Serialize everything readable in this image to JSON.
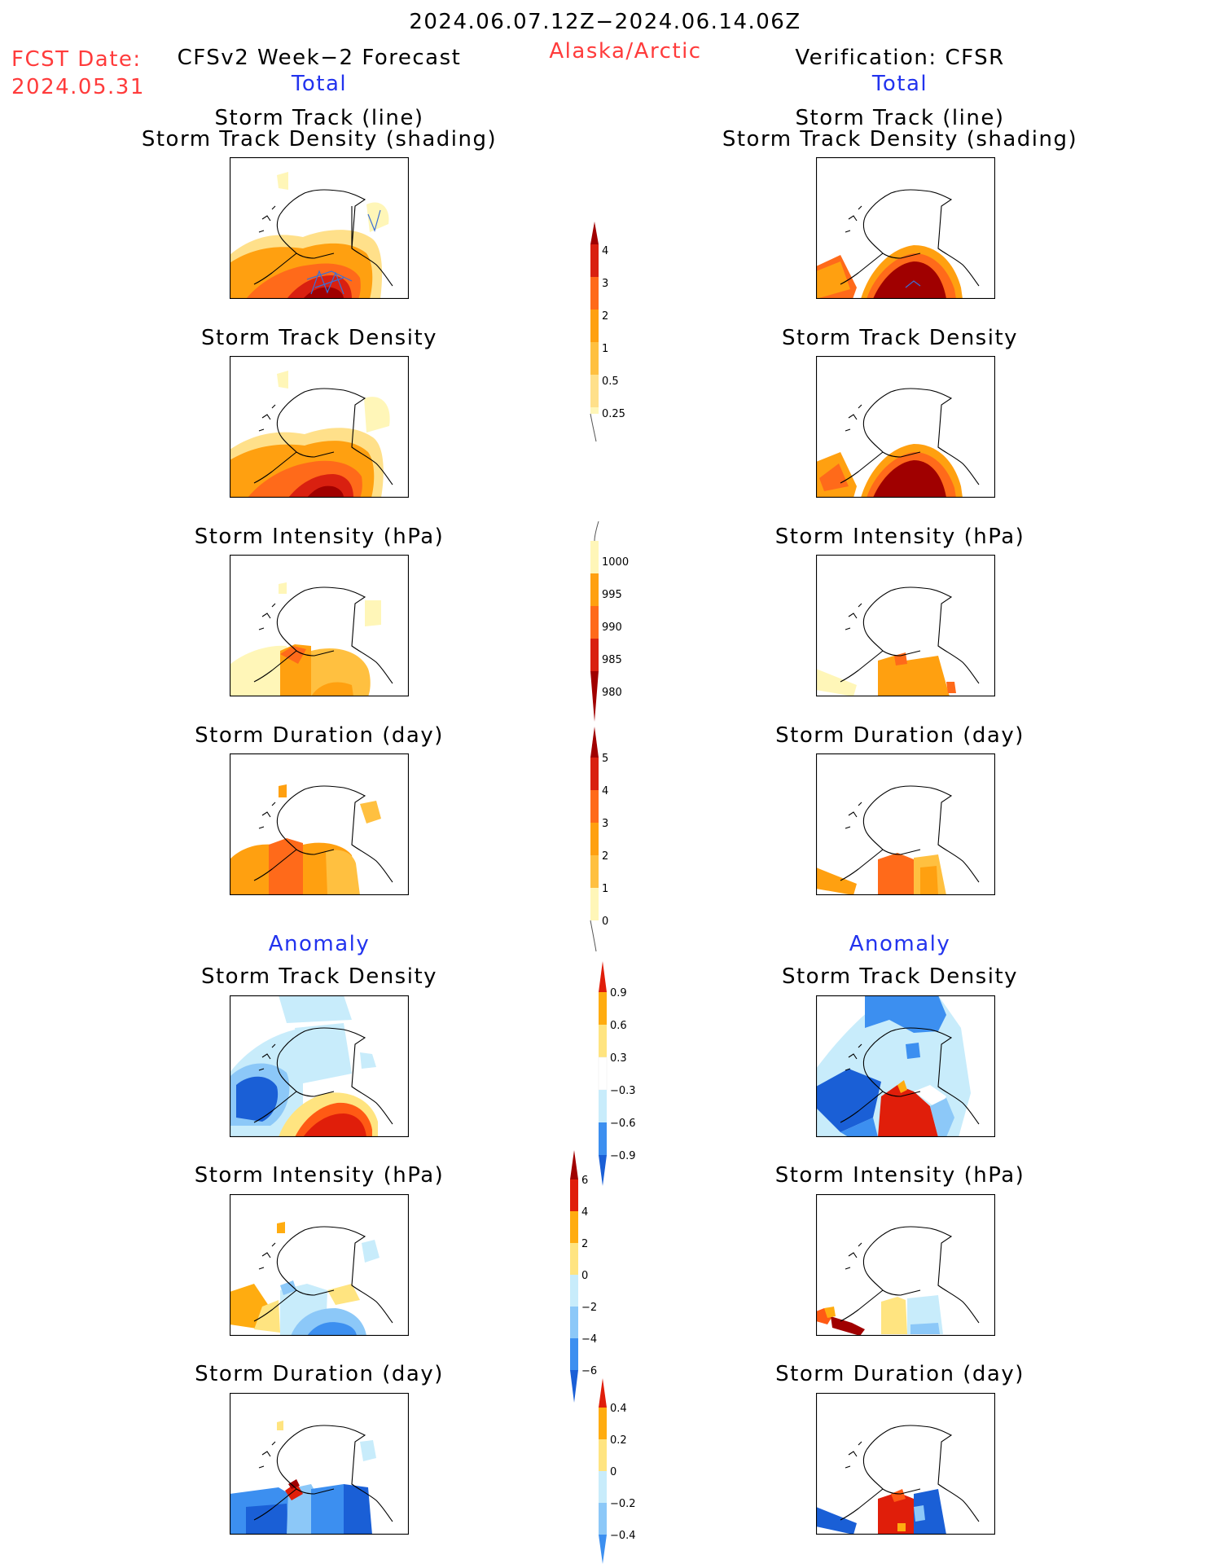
{
  "header": {
    "period": "2024.06.07.12Z−2024.06.14.06Z",
    "fcst_label": "FCST Date:",
    "fcst_date": "2024.05.31",
    "left_title": "CFSv2 Week−2 Forecast",
    "region": "Alaska/Arctic",
    "right_title": "Verification: CFSR",
    "total_label": "Total",
    "anomaly_label": "Anomaly"
  },
  "panel_titles": {
    "track_line": "Storm Track (line)",
    "track_shading": "Storm Track Density (shading)",
    "density": "Storm Track Density",
    "intensity": "Storm Intensity (hPa)",
    "duration": "Storm Duration (day)"
  },
  "colorbars": {
    "density_total": [
      "4",
      "3",
      "2",
      "1",
      "0.5",
      "0.25"
    ],
    "intensity_total": [
      "1000",
      "995",
      "990",
      "985",
      "980"
    ],
    "duration_total": [
      "5",
      "4",
      "3",
      "2",
      "1",
      "0"
    ],
    "density_anom": [
      "0.9",
      "0.6",
      "0.3",
      "−0.3",
      "−0.6",
      "−0.9"
    ],
    "intensity_anom": [
      "6",
      "4",
      "2",
      "0",
      "−2",
      "−4",
      "−6"
    ],
    "duration_anom": [
      "0.4",
      "0.2",
      "0",
      "−0.2",
      "−0.4"
    ]
  },
  "colors": {
    "title_red": "#ff3b3b",
    "label_blue": "#2233ee",
    "total_scale": [
      "#fff6b8",
      "#ffe08a",
      "#ffc040",
      "#ffa010",
      "#ff6a1a",
      "#d92010",
      "#a00000"
    ],
    "anomaly_scale": [
      "#1a5fd6",
      "#3c8ff0",
      "#8cc8f8",
      "#c8ecfb",
      "#ffffff",
      "#ffe480",
      "#ffac10",
      "#ff5a14",
      "#e01e0a",
      "#a00000"
    ]
  }
}
